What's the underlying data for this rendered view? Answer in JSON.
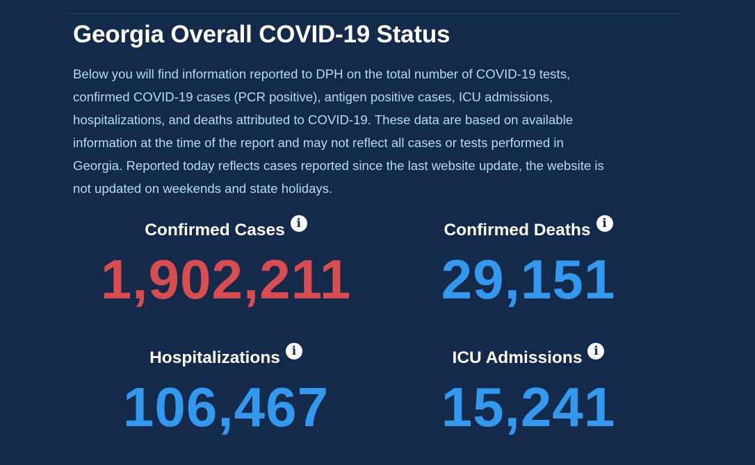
{
  "title": "Georgia Overall COVID-19 Status",
  "description_lines": [
    "Below you will find information reported to DPH on the total number of COVID-19 tests,",
    "confirmed COVID-19 cases (PCR positive), antigen positive cases, ICU admissions,",
    "hospitalizations, and deaths attributed to COVID-19. These data are based on available",
    "information at the time of the report and may not reflect all cases or tests performed in",
    "Georgia. Reported today reflects cases reported since the last website update, the website is",
    "not updated on weekends and state holidays."
  ],
  "info_glyph": "i",
  "stats": [
    {
      "label": "Confirmed Cases",
      "value": "1,902,211",
      "color": "#d94c4f"
    },
    {
      "label": "Confirmed Deaths",
      "value": "29,151",
      "color": "#3399ee"
    },
    {
      "label": "Hospitalizations",
      "value": "106,467",
      "color": "#3399ee"
    },
    {
      "label": "ICU Admissions",
      "value": "15,241",
      "color": "#3399ee"
    }
  ]
}
